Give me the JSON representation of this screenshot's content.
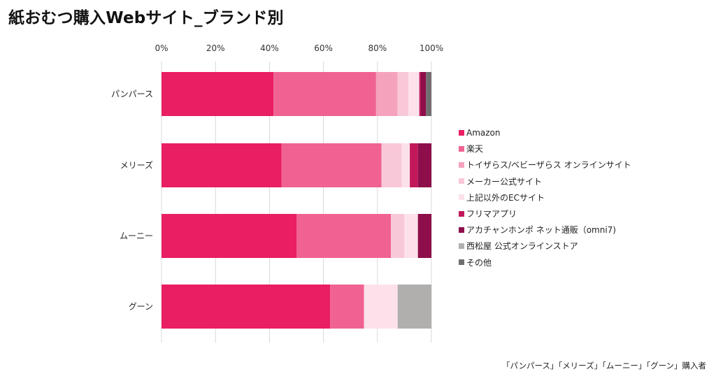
{
  "page": {
    "title": "紙おむつ購入Webサイト_ブランド別",
    "note": "「パンパース」「メリーズ」「ムーニー」「グーン」購入者"
  },
  "chart_data": {
    "type": "bar",
    "orientation": "horizontal",
    "stacked": "percent",
    "title": "紙おむつ購入Webサイト_ブランド別",
    "xlim": [
      0,
      100
    ],
    "x_ticks": [
      "0%",
      "20%",
      "40%",
      "60%",
      "80%",
      "100%"
    ],
    "grid": true,
    "legend_position": "right",
    "categories": [
      "パンパース",
      "メリーズ",
      "ムーニー",
      "グーン"
    ],
    "series": [
      {
        "name": "Amazon",
        "color": "#e91e63",
        "values": [
          41.5,
          44.5,
          50.0,
          62.5
        ]
      },
      {
        "name": "楽天",
        "color": "#f06292",
        "values": [
          38.0,
          37.0,
          35.0,
          12.5
        ]
      },
      {
        "name": "トイザらス/ベビーザらス オンラインサイト",
        "color": "#f5a3bd",
        "values": [
          8.0,
          0.0,
          0.0,
          0.0
        ]
      },
      {
        "name": "メーカー公式サイト",
        "color": "#f9c8d8",
        "values": [
          4.0,
          7.5,
          5.0,
          0.0
        ]
      },
      {
        "name": "上記以外のECサイト",
        "color": "#fce1ea",
        "values": [
          4.0,
          3.0,
          5.0,
          12.5
        ]
      },
      {
        "name": "フリマアプリ",
        "color": "#c2185b",
        "values": [
          0.5,
          3.0,
          0.0,
          0.0
        ]
      },
      {
        "name": "アカチャンホンポ ネット通販（omni7)",
        "color": "#8e0e4b",
        "values": [
          2.0,
          5.0,
          5.0,
          0.0
        ]
      },
      {
        "name": "西松屋 公式オンラインストア",
        "color": "#b1aeae",
        "values": [
          0.0,
          0.0,
          0.0,
          12.5
        ]
      },
      {
        "name": "その他",
        "color": "#707070",
        "values": [
          2.0,
          0.0,
          0.0,
          0.0
        ]
      }
    ]
  }
}
